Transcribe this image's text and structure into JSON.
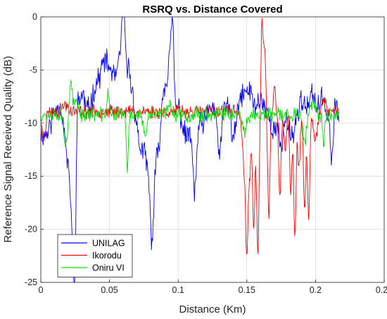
{
  "chart_data": {
    "type": "line",
    "title": "RSRQ vs. Distance Covered",
    "xlabel": "Distance (Km)",
    "ylabel": "Reference Signal Received Quality (dB)",
    "xlim": [
      0,
      0.25
    ],
    "ylim": [
      -25,
      0
    ],
    "xticks": [
      0,
      0.05,
      0.1,
      0.15,
      0.2,
      0.25
    ],
    "xtick_labels": [
      "0",
      "0.05",
      "0.1",
      "0.15",
      "0.2",
      "0.25"
    ],
    "yticks": [
      0,
      -5,
      -10,
      -15,
      -20,
      -25
    ],
    "ytick_labels": [
      "0",
      "-5",
      "-10",
      "-15",
      "-20",
      "-25"
    ],
    "grid": true,
    "legend_position": "bottom-left",
    "x_end": 0.217,
    "series": [
      {
        "name": "UNILAG",
        "color": "#0000ff",
        "base": -9.3,
        "noise": 0.9,
        "seed": 11,
        "features": [
          [
            0.004,
            0.01,
            -2.0
          ],
          [
            0.012,
            0.006,
            2.0
          ],
          [
            0.021,
            0.004,
            -5.5
          ],
          [
            0.024,
            0.002,
            -9.3
          ],
          [
            0.025,
            0.0015,
            -7.5
          ],
          [
            0.026,
            0.0015,
            5.0
          ],
          [
            0.03,
            0.003,
            2.0
          ],
          [
            0.04,
            0.004,
            2.5
          ],
          [
            0.046,
            0.004,
            4.0
          ],
          [
            0.052,
            0.005,
            3.5
          ],
          [
            0.058,
            0.003,
            4.0
          ],
          [
            0.06,
            0.0015,
            6.3
          ],
          [
            0.063,
            0.003,
            3.5
          ],
          [
            0.066,
            0.004,
            1.5
          ],
          [
            0.072,
            0.003,
            -2.5
          ],
          [
            0.078,
            0.004,
            -4.5
          ],
          [
            0.081,
            0.002,
            -8.5
          ],
          [
            0.085,
            0.003,
            -3.5
          ],
          [
            0.09,
            0.003,
            3.0
          ],
          [
            0.094,
            0.002,
            5.0
          ],
          [
            0.096,
            0.0012,
            7.3
          ],
          [
            0.1,
            0.003,
            1.0
          ],
          [
            0.106,
            0.004,
            -2.0
          ],
          [
            0.112,
            0.002,
            -7.0
          ],
          [
            0.118,
            0.003,
            -1.0
          ],
          [
            0.124,
            0.003,
            1.0
          ],
          [
            0.13,
            0.002,
            -3.5
          ],
          [
            0.136,
            0.003,
            1.2
          ],
          [
            0.14,
            0.002,
            -2.5
          ],
          [
            0.147,
            0.003,
            2.0
          ],
          [
            0.152,
            0.003,
            2.2
          ],
          [
            0.16,
            0.004,
            1.5
          ],
          [
            0.17,
            0.003,
            -1.5
          ],
          [
            0.175,
            0.002,
            -3.0
          ],
          [
            0.183,
            0.003,
            -1.8
          ],
          [
            0.19,
            0.003,
            1.5
          ],
          [
            0.198,
            0.003,
            2.0
          ],
          [
            0.205,
            0.003,
            1.5
          ],
          [
            0.212,
            0.0015,
            -4.5
          ],
          [
            0.214,
            0.0015,
            1.8
          ]
        ]
      },
      {
        "name": "Ikorodu",
        "color": "#ff0000",
        "base": -8.9,
        "noise": 0.5,
        "seed": 23,
        "features": [
          [
            0.002,
            0.002,
            -2.5
          ],
          [
            0.018,
            0.003,
            0.6
          ],
          [
            0.148,
            0.002,
            -5.0
          ],
          [
            0.15,
            0.0012,
            -11.5
          ],
          [
            0.152,
            0.0012,
            -6.0
          ],
          [
            0.155,
            0.0012,
            -11.3
          ],
          [
            0.158,
            0.0012,
            -13.4
          ],
          [
            0.161,
            0.001,
            8.2
          ],
          [
            0.163,
            0.0012,
            6.0
          ],
          [
            0.166,
            0.0012,
            -10.0
          ],
          [
            0.17,
            0.001,
            2.5
          ],
          [
            0.174,
            0.0012,
            -8.5
          ],
          [
            0.178,
            0.0012,
            -4.0
          ],
          [
            0.182,
            0.0012,
            -7.5
          ],
          [
            0.185,
            0.0012,
            -11.7
          ],
          [
            0.188,
            0.0012,
            -5.5
          ],
          [
            0.192,
            0.0012,
            -9.5
          ],
          [
            0.195,
            0.0012,
            -10.2
          ],
          [
            0.2,
            0.002,
            -2.5
          ],
          [
            0.206,
            0.002,
            1.0
          ]
        ]
      },
      {
        "name": "Oniru VI",
        "color": "#00e000",
        "base": -9.2,
        "noise": 0.55,
        "seed": 37,
        "features": [
          [
            0.018,
            0.0015,
            -3.0
          ],
          [
            0.022,
            0.0012,
            3.0
          ],
          [
            0.026,
            0.002,
            1.5
          ],
          [
            0.049,
            0.0012,
            2.0
          ],
          [
            0.063,
            0.001,
            -5.4
          ],
          [
            0.076,
            0.002,
            -2.0
          ],
          [
            0.094,
            0.002,
            1.0
          ],
          [
            0.148,
            0.002,
            -1.8
          ],
          [
            0.192,
            0.002,
            -2.5
          ],
          [
            0.198,
            0.002,
            1.0
          ],
          [
            0.206,
            0.001,
            -3.0
          ]
        ]
      }
    ]
  }
}
